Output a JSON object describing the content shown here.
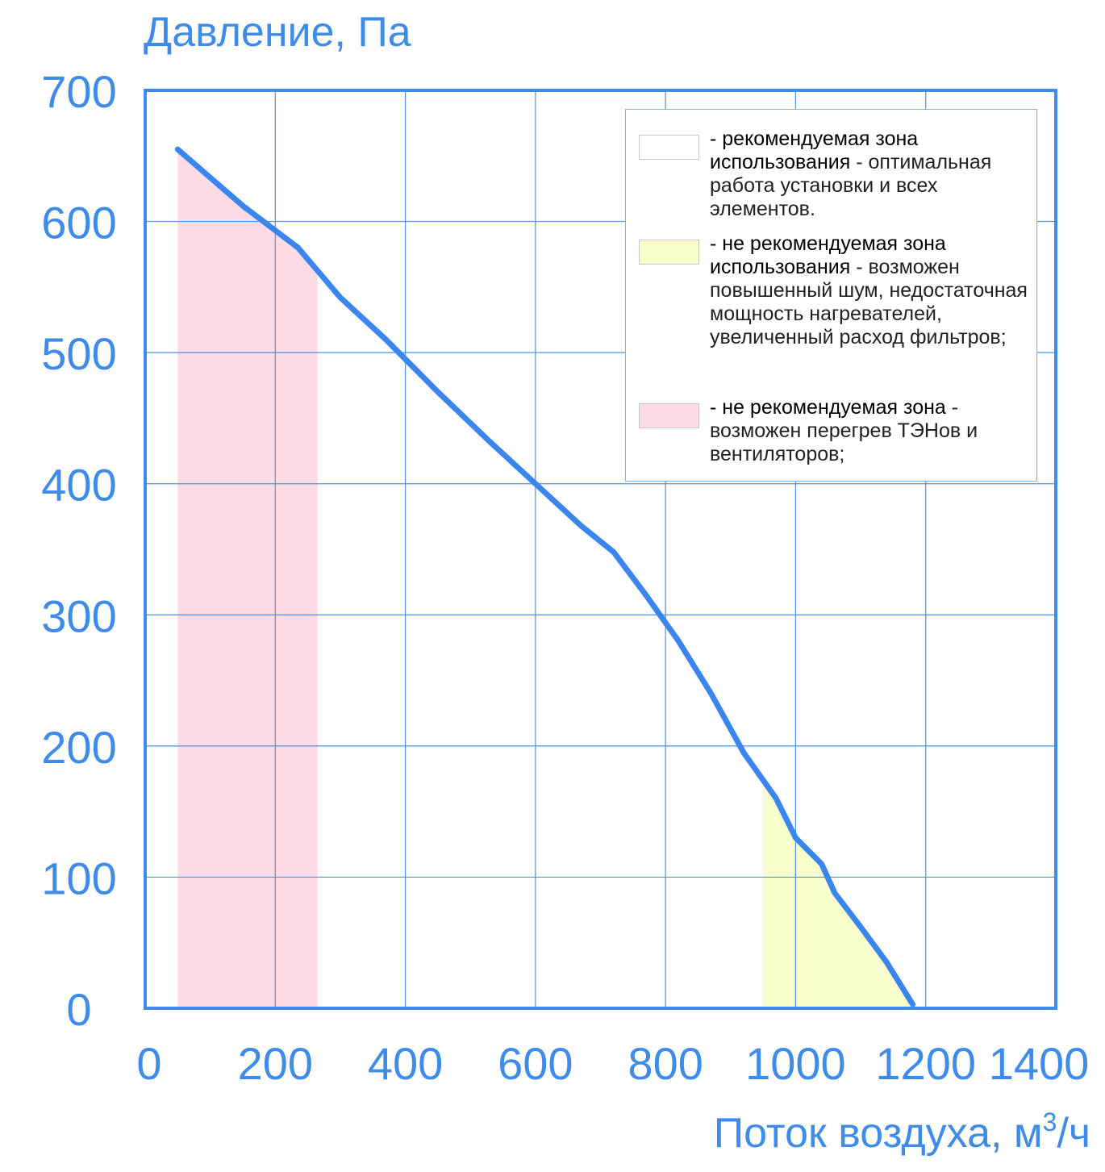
{
  "chart_data": {
    "type": "line",
    "ylabel": "Давление, Па",
    "xlabel": "Поток воздуха, м",
    "xlabel_sup": "3",
    "xlabel_tail": "/ч",
    "xlim": [
      0,
      1400
    ],
    "ylim": [
      0,
      700
    ],
    "x_ticks": [
      0,
      200,
      400,
      600,
      800,
      1000,
      1200,
      1400
    ],
    "y_ticks": [
      0,
      100,
      200,
      300,
      400,
      500,
      600,
      700
    ],
    "x_tick_labels": [
      "0",
      "200",
      "400",
      "600",
      "800",
      "1000",
      "1200",
      "1400"
    ],
    "y_tick_labels": [
      "0",
      "100",
      "200",
      "300",
      "400",
      "500",
      "600",
      "700"
    ],
    "grid": true,
    "series": [
      {
        "x": [
          50,
          150,
          235,
          300,
          370,
          450,
          530,
          600,
          670,
          720,
          770,
          820,
          870,
          920,
          970,
          1000,
          1040,
          1060,
          1100,
          1140,
          1180
        ],
        "y": [
          655,
          612,
          580,
          542,
          510,
          470,
          432,
          400,
          368,
          348,
          315,
          280,
          240,
          195,
          160,
          130,
          110,
          88,
          62,
          35,
          3
        ]
      }
    ],
    "zones": [
      {
        "name": "pink",
        "color": "#ffdbe6",
        "x_from": 50,
        "x_to": 265,
        "under_curve": true
      },
      {
        "name": "yellow",
        "color": "#f9ffcc",
        "x_from": 950,
        "x_to": 1180,
        "under_curve": true
      }
    ]
  },
  "colors": {
    "accent": "#3f8bea",
    "curve": "#3a86ee",
    "grid": "#4f90e0",
    "frame": "#3f8bea",
    "pink_zone": "#ffdbe6",
    "yellow_zone": "#f9ffcc"
  },
  "legend": {
    "items": [
      {
        "swatch_color": "#ffffff",
        "bold": "- рекомендуемая зона использования",
        "text": " - оптимальная работа установки и всех элементов."
      },
      {
        "swatch_color": "#f9ffcc",
        "bold": "- не рекомендуемая зона использования",
        "text": " - возможен повышенный шум, недостаточная мощность нагревателей, увеличенный расход фильтров;"
      },
      {
        "swatch_color": "#ffdbe6",
        "bold": "- не рекомендуемая зона",
        "text": " - возможен перегрев ТЭНов и вентиляторов;"
      }
    ]
  }
}
